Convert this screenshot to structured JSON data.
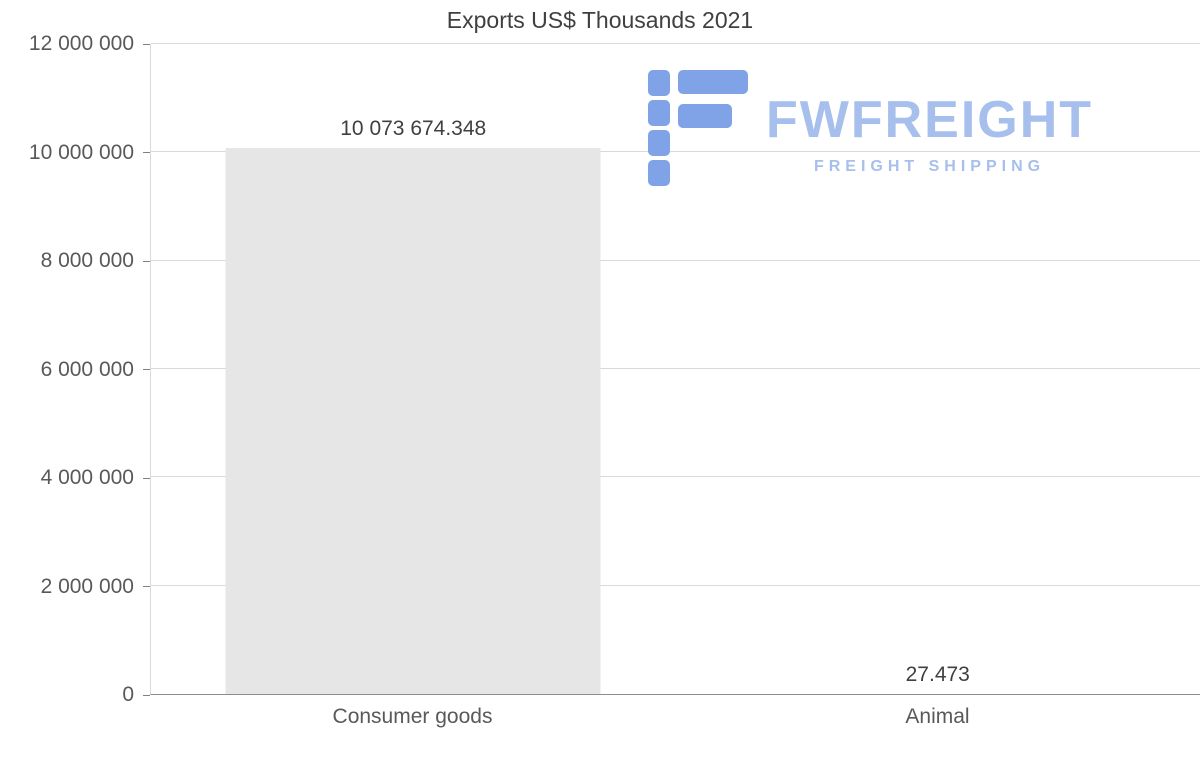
{
  "page": {
    "background": "#ffffff"
  },
  "chart_data": {
    "type": "bar",
    "title": "Exports US$ Thousands 2021",
    "categories": [
      "Consumer goods",
      "Animal"
    ],
    "values": [
      10073674.348,
      27.473
    ],
    "value_labels": [
      "10 073 674.348",
      "27.473"
    ],
    "xlabel": "",
    "ylabel": "",
    "ylim": [
      0,
      12000000
    ],
    "ytick_labels": [
      "0",
      "2 000 000",
      "4 000 000",
      "6 000 000",
      "8 000 000",
      "10 000 000",
      "12 000 000"
    ],
    "grid": true,
    "legend": "none",
    "bar_color": "#e6e6e6",
    "gridline_color": "#d9d9d9",
    "axis_line_color": "#8c8c8c",
    "title_text_color": "#404040",
    "axis_text_color": "#595959"
  },
  "watermark": {
    "brand": "FWFREIGHT",
    "tagline": "FREIGHT SHIPPING",
    "text_color": "#a7bfec",
    "icon_color": "#7fa3e6"
  }
}
